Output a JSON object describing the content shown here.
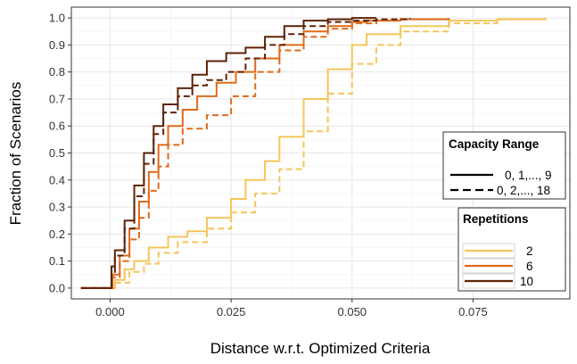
{
  "chart_data": {
    "type": "line",
    "subtype": "empirical-cdf-step",
    "xlabel": "Distance w.r.t. Optimized Criteria",
    "ylabel": "Fraction of Scenarios",
    "xlim": [
      -0.008,
      0.095
    ],
    "ylim": [
      -0.04,
      1.04
    ],
    "x_ticks": [
      0.0,
      0.025,
      0.05,
      0.075
    ],
    "x_tick_labels": [
      "0.000",
      "0.025",
      "0.050",
      "0.075"
    ],
    "y_ticks": [
      0.0,
      0.1,
      0.2,
      0.3,
      0.4,
      0.5,
      0.6,
      0.7,
      0.8,
      0.9,
      1.0
    ],
    "y_tick_labels": [
      "0.0",
      "0.1",
      "0.2",
      "0.3",
      "0.4",
      "0.5",
      "0.6",
      "0.7",
      "0.8",
      "0.9",
      "1.0"
    ],
    "grid": true,
    "legend_capacity": {
      "title": "Capacity Range",
      "position": "right",
      "entries": [
        {
          "label": "0, 1,..., 9",
          "linetype": "solid"
        },
        {
          "label": "0, 2,..., 18",
          "linetype": "dashed"
        }
      ]
    },
    "legend_repetitions": {
      "title": "Repetitions",
      "position": "right",
      "entries": [
        {
          "label": "2",
          "color": "#F5C55A"
        },
        {
          "label": "6",
          "color": "#E06A1B"
        },
        {
          "label": "10",
          "color": "#5E2206"
        }
      ]
    },
    "series": [
      {
        "repetitions": "2",
        "capacity": "0, 1,..., 9",
        "color": "#F5C55A",
        "linetype": "solid",
        "x": [
          -0.006,
          0.0,
          0.001,
          0.003,
          0.005,
          0.008,
          0.012,
          0.016,
          0.02,
          0.025,
          0.028,
          0.032,
          0.035,
          0.04,
          0.045,
          0.05,
          0.053,
          0.06,
          0.07,
          0.08,
          0.09
        ],
        "y": [
          0.0,
          0.0,
          0.03,
          0.07,
          0.1,
          0.15,
          0.19,
          0.21,
          0.26,
          0.33,
          0.4,
          0.47,
          0.56,
          0.7,
          0.81,
          0.9,
          0.94,
          0.97,
          0.99,
          0.995,
          1.0
        ]
      },
      {
        "repetitions": "2",
        "capacity": "0, 2,..., 18",
        "color": "#F5C55A",
        "linetype": "dashed",
        "x": [
          -0.006,
          0.0,
          0.001,
          0.004,
          0.007,
          0.01,
          0.014,
          0.02,
          0.025,
          0.03,
          0.035,
          0.04,
          0.045,
          0.05,
          0.055,
          0.06,
          0.07,
          0.08,
          0.09
        ],
        "y": [
          0.0,
          0.0,
          0.02,
          0.06,
          0.09,
          0.13,
          0.17,
          0.22,
          0.28,
          0.35,
          0.44,
          0.58,
          0.72,
          0.83,
          0.9,
          0.95,
          0.98,
          0.995,
          1.0
        ]
      },
      {
        "repetitions": "6",
        "capacity": "0, 1,..., 9",
        "color": "#E06A1B",
        "linetype": "solid",
        "x": [
          -0.006,
          0.0,
          0.0005,
          0.002,
          0.004,
          0.006,
          0.008,
          0.01,
          0.012,
          0.015,
          0.018,
          0.022,
          0.026,
          0.03,
          0.035,
          0.04,
          0.045,
          0.05,
          0.053,
          0.06,
          0.07
        ],
        "y": [
          0.0,
          0.0,
          0.05,
          0.12,
          0.22,
          0.32,
          0.43,
          0.53,
          0.6,
          0.66,
          0.71,
          0.76,
          0.8,
          0.85,
          0.9,
          0.95,
          0.97,
          0.985,
          0.99,
          0.995,
          1.0
        ]
      },
      {
        "repetitions": "6",
        "capacity": "0, 2,..., 18",
        "color": "#E06A1B",
        "linetype": "dashed",
        "x": [
          -0.006,
          0.0,
          0.0005,
          0.002,
          0.004,
          0.006,
          0.008,
          0.01,
          0.012,
          0.015,
          0.02,
          0.025,
          0.03,
          0.035,
          0.04,
          0.045,
          0.05,
          0.055,
          0.06
        ],
        "y": [
          0.0,
          0.0,
          0.04,
          0.1,
          0.18,
          0.26,
          0.36,
          0.45,
          0.53,
          0.59,
          0.64,
          0.71,
          0.8,
          0.88,
          0.93,
          0.96,
          0.98,
          0.99,
          1.0
        ]
      },
      {
        "repetitions": "10",
        "capacity": "0, 1,..., 9",
        "color": "#5E2206",
        "linetype": "solid",
        "x": [
          -0.006,
          0.0,
          0.0003,
          0.001,
          0.003,
          0.005,
          0.007,
          0.009,
          0.011,
          0.014,
          0.017,
          0.02,
          0.024,
          0.028,
          0.032,
          0.036,
          0.04,
          0.045,
          0.05,
          0.055
        ],
        "y": [
          0.0,
          0.0,
          0.08,
          0.14,
          0.25,
          0.38,
          0.5,
          0.6,
          0.68,
          0.74,
          0.79,
          0.84,
          0.87,
          0.89,
          0.93,
          0.97,
          0.99,
          0.995,
          1.0,
          1.0
        ]
      },
      {
        "repetitions": "10",
        "capacity": "0, 2,..., 18",
        "color": "#5E2206",
        "linetype": "dashed",
        "x": [
          -0.006,
          0.0,
          0.0003,
          0.001,
          0.003,
          0.005,
          0.007,
          0.009,
          0.011,
          0.014,
          0.017,
          0.02,
          0.024,
          0.028,
          0.032,
          0.036,
          0.04,
          0.045,
          0.05,
          0.055,
          0.062
        ],
        "y": [
          0.0,
          0.0,
          0.06,
          0.12,
          0.22,
          0.34,
          0.46,
          0.57,
          0.65,
          0.71,
          0.75,
          0.77,
          0.8,
          0.85,
          0.9,
          0.94,
          0.97,
          0.985,
          0.99,
          0.995,
          1.0
        ]
      }
    ]
  }
}
